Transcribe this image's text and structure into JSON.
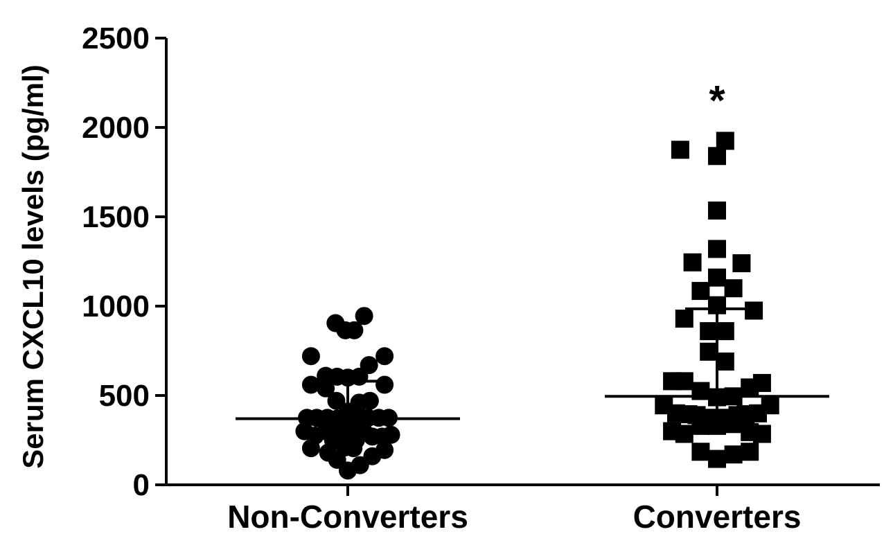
{
  "chart_data": {
    "type": "scatter",
    "ylabel": "Serum CXCL10 levels (pg/ml)",
    "ylim": [
      0,
      2500
    ],
    "yticks": [
      "0",
      "500",
      "1000",
      "1500",
      "2000",
      "2500"
    ],
    "yticks_values": [
      0,
      500,
      1000,
      1500,
      2000,
      2500
    ],
    "categories": [
      "Non-Converters",
      "Converters"
    ],
    "grid": false,
    "legend": "none",
    "series": [
      {
        "category": "Non-Converters",
        "marker": "circle",
        "median": 370,
        "iqr": [
          270,
          580
        ],
        "points": [
          {
            "offset": -0.45,
            "y": 720
          },
          {
            "offset": 0.45,
            "y": 720
          },
          {
            "offset": -0.15,
            "y": 905
          },
          {
            "offset": -0.03,
            "y": 865
          },
          {
            "offset": 0.08,
            "y": 865
          },
          {
            "offset": 0.2,
            "y": 945
          },
          {
            "offset": -0.27,
            "y": 610
          },
          {
            "offset": -0.13,
            "y": 605
          },
          {
            "offset": 0.0,
            "y": 600
          },
          {
            "offset": 0.14,
            "y": 605
          },
          {
            "offset": 0.26,
            "y": 670
          },
          {
            "offset": -0.45,
            "y": 560
          },
          {
            "offset": -0.27,
            "y": 540
          },
          {
            "offset": 0.45,
            "y": 560
          },
          {
            "offset": -0.14,
            "y": 470
          },
          {
            "offset": 0.14,
            "y": 460
          },
          {
            "offset": 0.27,
            "y": 470
          },
          {
            "offset": -0.5,
            "y": 375
          },
          {
            "offset": -0.38,
            "y": 375
          },
          {
            "offset": -0.25,
            "y": 375
          },
          {
            "offset": -0.13,
            "y": 370
          },
          {
            "offset": 0.0,
            "y": 410
          },
          {
            "offset": 0.13,
            "y": 375
          },
          {
            "offset": 0.25,
            "y": 375
          },
          {
            "offset": 0.38,
            "y": 375
          },
          {
            "offset": 0.5,
            "y": 375
          },
          {
            "offset": -0.05,
            "y": 350
          },
          {
            "offset": 0.05,
            "y": 350
          },
          {
            "offset": -0.53,
            "y": 300
          },
          {
            "offset": -0.4,
            "y": 275
          },
          {
            "offset": -0.27,
            "y": 300
          },
          {
            "offset": -0.13,
            "y": 305
          },
          {
            "offset": -0.03,
            "y": 300
          },
          {
            "offset": 0.08,
            "y": 305
          },
          {
            "offset": 0.2,
            "y": 295
          },
          {
            "offset": 0.3,
            "y": 270
          },
          {
            "offset": 0.42,
            "y": 270
          },
          {
            "offset": 0.53,
            "y": 280
          },
          {
            "offset": -0.18,
            "y": 250
          },
          {
            "offset": 0.1,
            "y": 250
          },
          {
            "offset": -0.45,
            "y": 205
          },
          {
            "offset": -0.24,
            "y": 180
          },
          {
            "offset": -0.03,
            "y": 210
          },
          {
            "offset": 0.07,
            "y": 205
          },
          {
            "offset": 0.3,
            "y": 160
          },
          {
            "offset": 0.45,
            "y": 195
          },
          {
            "offset": -0.13,
            "y": 140
          },
          {
            "offset": 0.15,
            "y": 110
          },
          {
            "offset": 0.0,
            "y": 80
          }
        ]
      },
      {
        "category": "Converters",
        "marker": "square",
        "median": 495,
        "iqr": [
          400,
          985
        ],
        "points": [
          {
            "offset": 0.1,
            "y": 1925
          },
          {
            "offset": -0.45,
            "y": 1875
          },
          {
            "offset": 0.0,
            "y": 1840
          },
          {
            "offset": 0.0,
            "y": 1535
          },
          {
            "offset": 0.0,
            "y": 1320
          },
          {
            "offset": -0.3,
            "y": 1245
          },
          {
            "offset": 0.3,
            "y": 1240
          },
          {
            "offset": 0.0,
            "y": 1160
          },
          {
            "offset": -0.2,
            "y": 1085
          },
          {
            "offset": 0.2,
            "y": 1100
          },
          {
            "offset": 0.0,
            "y": 1005
          },
          {
            "offset": 0.45,
            "y": 975
          },
          {
            "offset": -0.4,
            "y": 930
          },
          {
            "offset": -0.1,
            "y": 860
          },
          {
            "offset": 0.1,
            "y": 860
          },
          {
            "offset": -0.1,
            "y": 745
          },
          {
            "offset": 0.1,
            "y": 690
          },
          {
            "offset": -0.55,
            "y": 580
          },
          {
            "offset": -0.4,
            "y": 580
          },
          {
            "offset": 0.55,
            "y": 570
          },
          {
            "offset": 0.4,
            "y": 545
          },
          {
            "offset": -0.2,
            "y": 525
          },
          {
            "offset": 0.0,
            "y": 490
          },
          {
            "offset": 0.2,
            "y": 495
          },
          {
            "offset": -0.65,
            "y": 445
          },
          {
            "offset": 0.65,
            "y": 445
          },
          {
            "offset": -0.5,
            "y": 400
          },
          {
            "offset": -0.35,
            "y": 395
          },
          {
            "offset": -0.25,
            "y": 390
          },
          {
            "offset": -0.1,
            "y": 375
          },
          {
            "offset": 0.1,
            "y": 375
          },
          {
            "offset": 0.25,
            "y": 390
          },
          {
            "offset": 0.35,
            "y": 395
          },
          {
            "offset": 0.5,
            "y": 400
          },
          {
            "offset": -0.2,
            "y": 330
          },
          {
            "offset": 0.0,
            "y": 330
          },
          {
            "offset": 0.2,
            "y": 340
          },
          {
            "offset": -0.55,
            "y": 300
          },
          {
            "offset": -0.4,
            "y": 285
          },
          {
            "offset": 0.4,
            "y": 295
          },
          {
            "offset": 0.55,
            "y": 285
          },
          {
            "offset": -0.2,
            "y": 185
          },
          {
            "offset": 0.2,
            "y": 170
          },
          {
            "offset": 0.4,
            "y": 185
          },
          {
            "offset": 0.0,
            "y": 145
          }
        ]
      }
    ],
    "annotations": [
      {
        "text": "*",
        "category": "Converters",
        "y": 2150
      }
    ]
  }
}
